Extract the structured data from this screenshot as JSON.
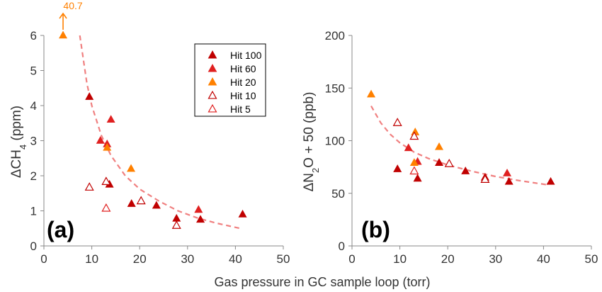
{
  "figure": {
    "xlabel": "Gas pressure in GC sample loop (torr)"
  },
  "chart_data": [
    {
      "type": "scatter",
      "panel_label": "(a)",
      "ylabel": "ΔCH4 (ppm)",
      "ylabel_parts": {
        "prefix": "ΔCH",
        "sub": "4",
        "suffix": " (ppm)"
      },
      "xlim": [
        0,
        50
      ],
      "ylim": [
        0,
        6
      ],
      "xticks": [
        "0",
        "10",
        "20",
        "30",
        "40",
        "50"
      ],
      "yticks": [
        "0",
        "1",
        "2",
        "3",
        "4",
        "5",
        "6"
      ],
      "annotation": {
        "text": "40.7",
        "x": 4,
        "y": 6,
        "color": "#ff8000"
      },
      "series": [
        {
          "name": "Hit 100",
          "marker": "filled",
          "color": "#c00000",
          "points": [
            [
              9.5,
              4.25
            ],
            [
              13.7,
              1.75
            ],
            [
              18.3,
              1.2
            ],
            [
              23.5,
              1.15
            ],
            [
              27.7,
              0.78
            ],
            [
              32.7,
              0.75
            ],
            [
              41.5,
              0.9
            ]
          ]
        },
        {
          "name": "Hit 60",
          "marker": "filled",
          "color": "#e02020",
          "points": [
            [
              11.8,
              3.0
            ],
            [
              13.2,
              2.9
            ],
            [
              14.0,
              3.6
            ],
            [
              32.3,
              1.03
            ]
          ]
        },
        {
          "name": "Hit 20",
          "marker": "filled",
          "color": "#ff8000",
          "points": [
            [
              4.0,
              6.0
            ],
            [
              13.2,
              2.8
            ],
            [
              18.2,
              2.2
            ]
          ]
        },
        {
          "name": "Hit 10",
          "marker": "open",
          "color": "#c00000",
          "points": [
            [
              9.5,
              1.67
            ],
            [
              13.0,
              1.83
            ],
            [
              20.3,
              1.28
            ],
            [
              27.7,
              0.58
            ]
          ]
        },
        {
          "name": "Hit 5",
          "marker": "open",
          "color": "#e02020",
          "points": [
            [
              13.0,
              1.07
            ]
          ]
        }
      ],
      "fit": {
        "style": "dashed",
        "color": "#f08080",
        "points": [
          [
            7.5,
            6.0
          ],
          [
            9,
            4.62
          ],
          [
            10,
            4.0
          ],
          [
            12,
            3.15
          ],
          [
            14,
            2.58
          ],
          [
            17,
            2.0
          ],
          [
            20,
            1.62
          ],
          [
            24,
            1.28
          ],
          [
            28,
            1.0
          ],
          [
            32,
            0.8
          ],
          [
            36,
            0.65
          ],
          [
            41,
            0.5
          ]
        ]
      },
      "legend": {
        "placement": "top-right"
      }
    },
    {
      "type": "scatter",
      "panel_label": "(b)",
      "ylabel": "ΔN2O + 50 (ppb)",
      "ylabel_parts": {
        "prefix": "ΔN",
        "sub": "2",
        "suffix": "O + 50 (ppb)"
      },
      "xlim": [
        0,
        50
      ],
      "ylim": [
        0,
        200
      ],
      "xticks": [
        "0",
        "10",
        "20",
        "30",
        "40",
        "50"
      ],
      "yticks": [
        "0",
        "50",
        "100",
        "150",
        "200"
      ],
      "series": [
        {
          "name": "Hit 100",
          "marker": "filled",
          "color": "#c00000",
          "points": [
            [
              9.5,
              73
            ],
            [
              13.7,
              64
            ],
            [
              18.2,
              79
            ],
            [
              23.7,
              71
            ],
            [
              27.8,
              65
            ],
            [
              32.8,
              61
            ],
            [
              41.5,
              61
            ]
          ]
        },
        {
          "name": "Hit 60",
          "marker": "filled",
          "color": "#e02020",
          "points": [
            [
              11.8,
              93
            ],
            [
              13.7,
              80
            ],
            [
              32.4,
              69
            ]
          ]
        },
        {
          "name": "Hit 20",
          "marker": "filled",
          "color": "#ff8000",
          "points": [
            [
              4.0,
              144
            ],
            [
              13.2,
              108
            ],
            [
              13.0,
              79
            ],
            [
              18.2,
              94
            ]
          ]
        },
        {
          "name": "Hit 10",
          "marker": "open",
          "color": "#c00000",
          "points": [
            [
              9.5,
              117
            ],
            [
              13.0,
              104
            ],
            [
              20.3,
              78
            ],
            [
              27.8,
              63
            ]
          ]
        },
        {
          "name": "Hit 5",
          "marker": "open",
          "color": "#e02020",
          "points": [
            [
              13.0,
              71
            ]
          ]
        }
      ],
      "fit": {
        "style": "dashed",
        "color": "#f08080",
        "points": [
          [
            4,
            133
          ],
          [
            6,
            117
          ],
          [
            8,
            106
          ],
          [
            10,
            98
          ],
          [
            13,
            89
          ],
          [
            16,
            83
          ],
          [
            20,
            77
          ],
          [
            25,
            71
          ],
          [
            30,
            66
          ],
          [
            35,
            62
          ],
          [
            41,
            58
          ]
        ]
      }
    }
  ]
}
